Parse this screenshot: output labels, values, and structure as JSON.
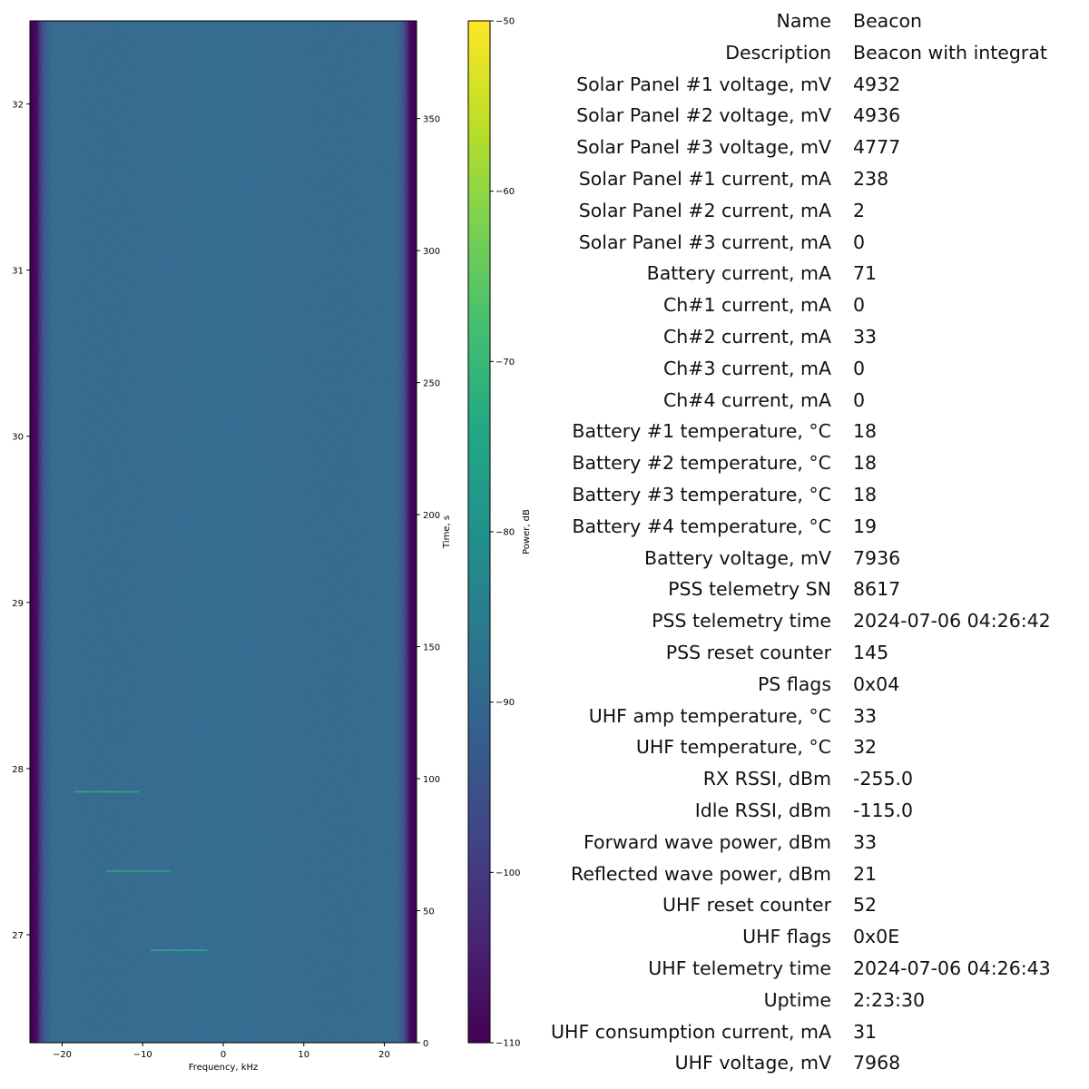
{
  "chart_data": {
    "type": "heatmap",
    "xlabel": "Frequency, kHz",
    "ylabel_right": "Time, s",
    "colorbar_label": "Power, dB",
    "xlim": [
      -24,
      24
    ],
    "xticks": [
      -20,
      -10,
      0,
      10,
      20
    ],
    "ylim_right": [
      0,
      387
    ],
    "yticks_right": [
      0,
      50,
      100,
      150,
      200,
      250,
      300,
      350
    ],
    "ylim_left": [
      26.35,
      32.5
    ],
    "yticks_left": [
      27,
      28,
      29,
      30,
      31,
      32
    ],
    "colorbar_range": [
      -110,
      -50
    ],
    "colorbar_ticks": [
      -110,
      -100,
      -90,
      -80,
      -70,
      -60,
      -50
    ],
    "colormap": "viridis",
    "background_level_db": -89,
    "edge_level_db": -110,
    "signal_traces": [
      {
        "time_s": 95,
        "freq_start_khz": -18.5,
        "freq_end_khz": -10.5,
        "level_db": -78
      },
      {
        "time_s": 65,
        "freq_start_khz": -14.5,
        "freq_end_khz": -6.5,
        "level_db": -78
      },
      {
        "time_s": 35,
        "freq_start_khz": -9.0,
        "freq_end_khz": -2.0,
        "level_db": -80
      }
    ]
  },
  "telemetry": {
    "rows": [
      {
        "name": "Name",
        "value": "Beacon"
      },
      {
        "name": "Description",
        "value": "Beacon with integrat"
      },
      {
        "name": "Solar Panel #1 voltage, mV",
        "value": "4932"
      },
      {
        "name": "Solar Panel #2 voltage, mV",
        "value": "4936"
      },
      {
        "name": "Solar Panel #3 voltage, mV",
        "value": "4777"
      },
      {
        "name": "Solar Panel #1 current, mA",
        "value": "238"
      },
      {
        "name": "Solar Panel #2 current, mA",
        "value": "2"
      },
      {
        "name": "Solar Panel #3 current, mA",
        "value": "0"
      },
      {
        "name": "Battery current, mA",
        "value": "71"
      },
      {
        "name": "Ch#1 current, mA",
        "value": "0"
      },
      {
        "name": "Ch#2 current, mA",
        "value": "33"
      },
      {
        "name": "Ch#3 current, mA",
        "value": "0"
      },
      {
        "name": "Ch#4 current, mA",
        "value": "0"
      },
      {
        "name": "Battery #1 temperature, °C",
        "value": "18"
      },
      {
        "name": "Battery #2 temperature, °C",
        "value": "18"
      },
      {
        "name": "Battery #3 temperature, °C",
        "value": "18"
      },
      {
        "name": "Battery #4 temperature, °C",
        "value": "19"
      },
      {
        "name": "Battery voltage, mV",
        "value": "7936"
      },
      {
        "name": "PSS telemetry SN",
        "value": "8617"
      },
      {
        "name": "PSS telemetry time",
        "value": "2024-07-06 04:26:42"
      },
      {
        "name": "PSS reset counter",
        "value": "145"
      },
      {
        "name": "PS flags",
        "value": "0x04"
      },
      {
        "name": "UHF amp temperature, °C",
        "value": "33"
      },
      {
        "name": "UHF temperature, °C",
        "value": "32"
      },
      {
        "name": "RX RSSI, dBm",
        "value": "-255.0"
      },
      {
        "name": "Idle RSSI, dBm",
        "value": "-115.0"
      },
      {
        "name": "Forward wave power, dBm",
        "value": "33"
      },
      {
        "name": "Reflected wave power, dBm",
        "value": "21"
      },
      {
        "name": "UHF reset counter",
        "value": "52"
      },
      {
        "name": "UHF flags",
        "value": "0x0E"
      },
      {
        "name": "UHF telemetry time",
        "value": "2024-07-06 04:26:43"
      },
      {
        "name": "Uptime",
        "value": "2:23:30"
      },
      {
        "name": "UHF consumption current, mA",
        "value": "31"
      },
      {
        "name": "UHF voltage, mV",
        "value": "7968"
      }
    ]
  }
}
